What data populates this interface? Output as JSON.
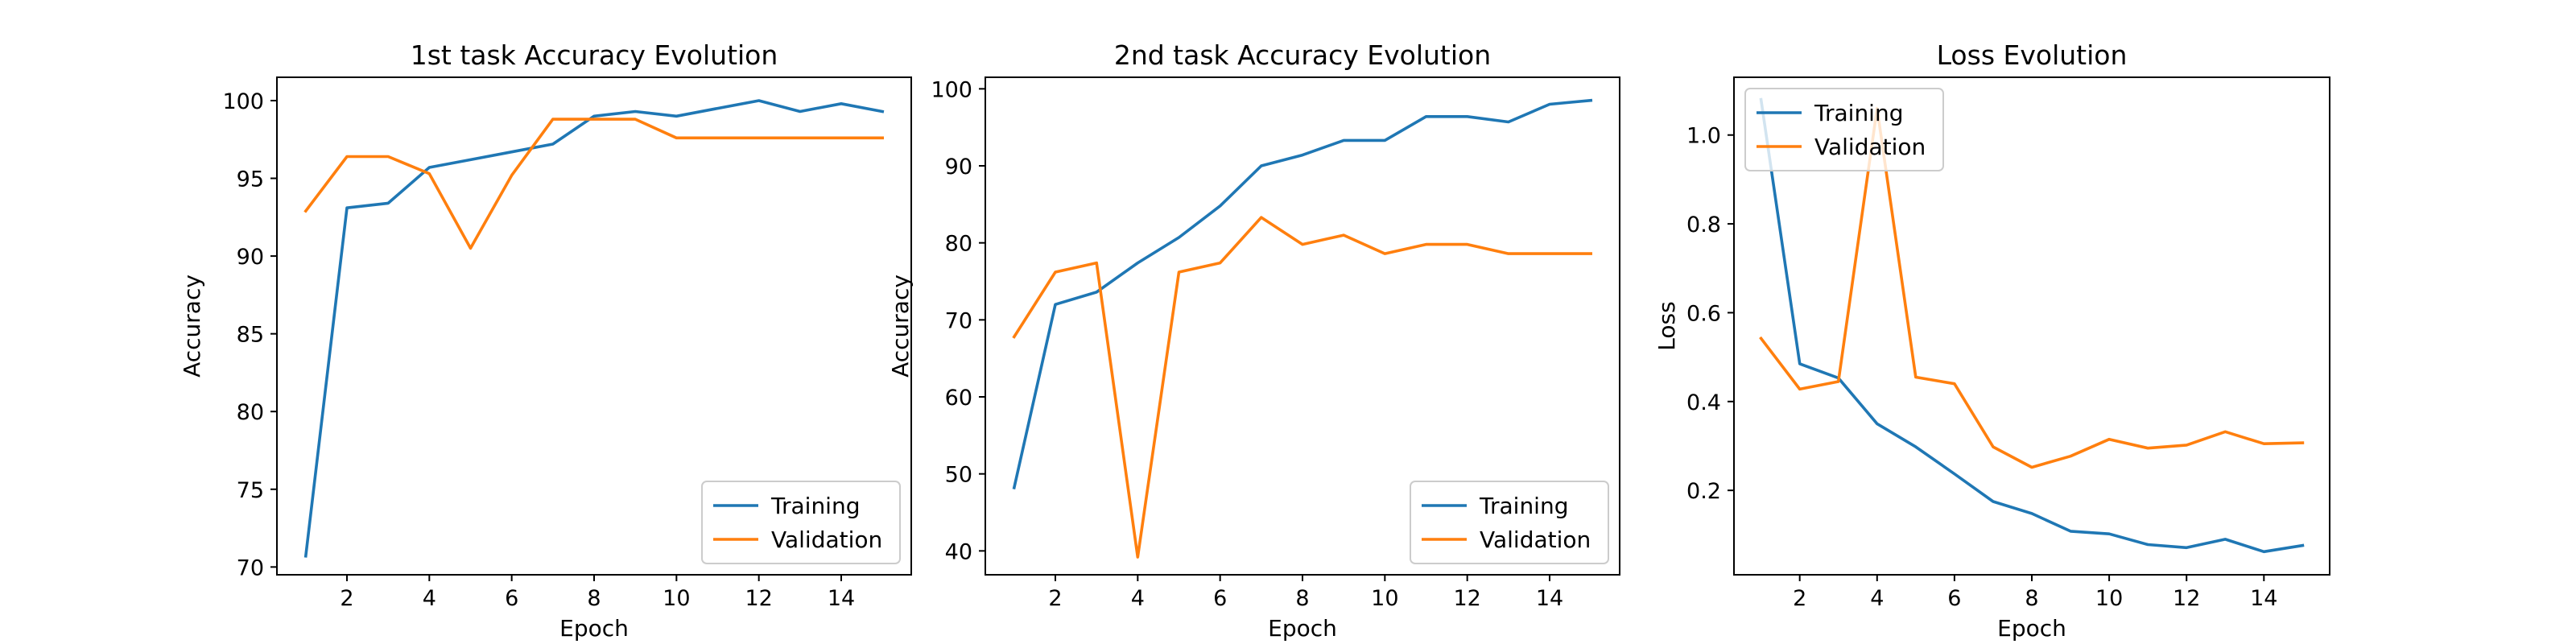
{
  "colors": {
    "training": "#1f77b4",
    "validation": "#ff7f0e"
  },
  "chart_data": [
    {
      "type": "line",
      "title": "1st task Accuracy Evolution",
      "xlabel": "Epoch",
      "ylabel": "Accuracy",
      "xlim": [
        0.3,
        15.7
      ],
      "ylim": [
        69.5,
        101.5
      ],
      "xticks": [
        2,
        4,
        6,
        8,
        10,
        12,
        14
      ],
      "yticks": [
        70,
        75,
        80,
        85,
        90,
        95,
        100
      ],
      "grid": false,
      "legend": "lower right",
      "x": [
        1,
        2,
        3,
        4,
        5,
        6,
        7,
        8,
        9,
        10,
        11,
        12,
        13,
        14,
        15
      ],
      "series": [
        {
          "name": "Training",
          "values": [
            70.7,
            93.1,
            93.4,
            95.7,
            96.2,
            96.7,
            97.2,
            99.0,
            99.3,
            99.0,
            99.5,
            100.0,
            99.3,
            99.8,
            99.3
          ]
        },
        {
          "name": "Validation",
          "values": [
            92.9,
            96.4,
            96.4,
            95.3,
            90.5,
            95.2,
            98.8,
            98.8,
            98.8,
            97.6,
            97.6,
            97.6,
            97.6,
            97.6,
            97.6
          ]
        }
      ]
    },
    {
      "type": "line",
      "title": "2nd task Accuracy Evolution",
      "xlabel": "Epoch",
      "ylabel": "Accuracy",
      "xlim": [
        0.3,
        15.7
      ],
      "ylim": [
        36.9,
        101.5
      ],
      "xticks": [
        2,
        4,
        6,
        8,
        10,
        12,
        14
      ],
      "yticks": [
        40,
        50,
        60,
        70,
        80,
        90,
        100
      ],
      "grid": false,
      "legend": "lower right",
      "x": [
        1,
        2,
        3,
        4,
        5,
        6,
        7,
        8,
        9,
        10,
        11,
        12,
        13,
        14,
        15
      ],
      "series": [
        {
          "name": "Training",
          "values": [
            48.2,
            72.0,
            73.6,
            77.4,
            80.7,
            84.8,
            90.0,
            91.4,
            93.3,
            93.3,
            96.4,
            96.4,
            95.7,
            98.0,
            98.5
          ]
        },
        {
          "name": "Validation",
          "values": [
            67.8,
            76.2,
            77.4,
            39.2,
            76.2,
            77.4,
            83.3,
            79.8,
            81.0,
            78.6,
            79.8,
            79.8,
            78.6,
            78.6,
            78.6
          ]
        }
      ]
    },
    {
      "type": "line",
      "title": "Loss Evolution",
      "xlabel": "Epoch",
      "ylabel": "Loss",
      "xlim": [
        0.3,
        15.7
      ],
      "ylim": [
        0.01,
        1.13
      ],
      "xticks": [
        2,
        4,
        6,
        8,
        10,
        12,
        14
      ],
      "yticks": [
        0.2,
        0.4,
        0.6,
        0.8,
        1.0
      ],
      "ytick_labels": [
        "0.2",
        "0.4",
        "0.6",
        "0.8",
        "1.0"
      ],
      "grid": false,
      "legend": "upper left",
      "x": [
        1,
        2,
        3,
        4,
        5,
        6,
        7,
        8,
        9,
        10,
        11,
        12,
        13,
        14,
        15
      ],
      "series": [
        {
          "name": "Training",
          "values": [
            1.08,
            0.485,
            0.453,
            0.35,
            0.298,
            0.237,
            0.175,
            0.148,
            0.108,
            0.102,
            0.078,
            0.071,
            0.09,
            0.062,
            0.076
          ]
        },
        {
          "name": "Validation",
          "values": [
            0.542,
            0.428,
            0.445,
            1.06,
            0.455,
            0.44,
            0.298,
            0.252,
            0.277,
            0.315,
            0.295,
            0.302,
            0.332,
            0.305,
            0.307
          ]
        }
      ]
    }
  ]
}
